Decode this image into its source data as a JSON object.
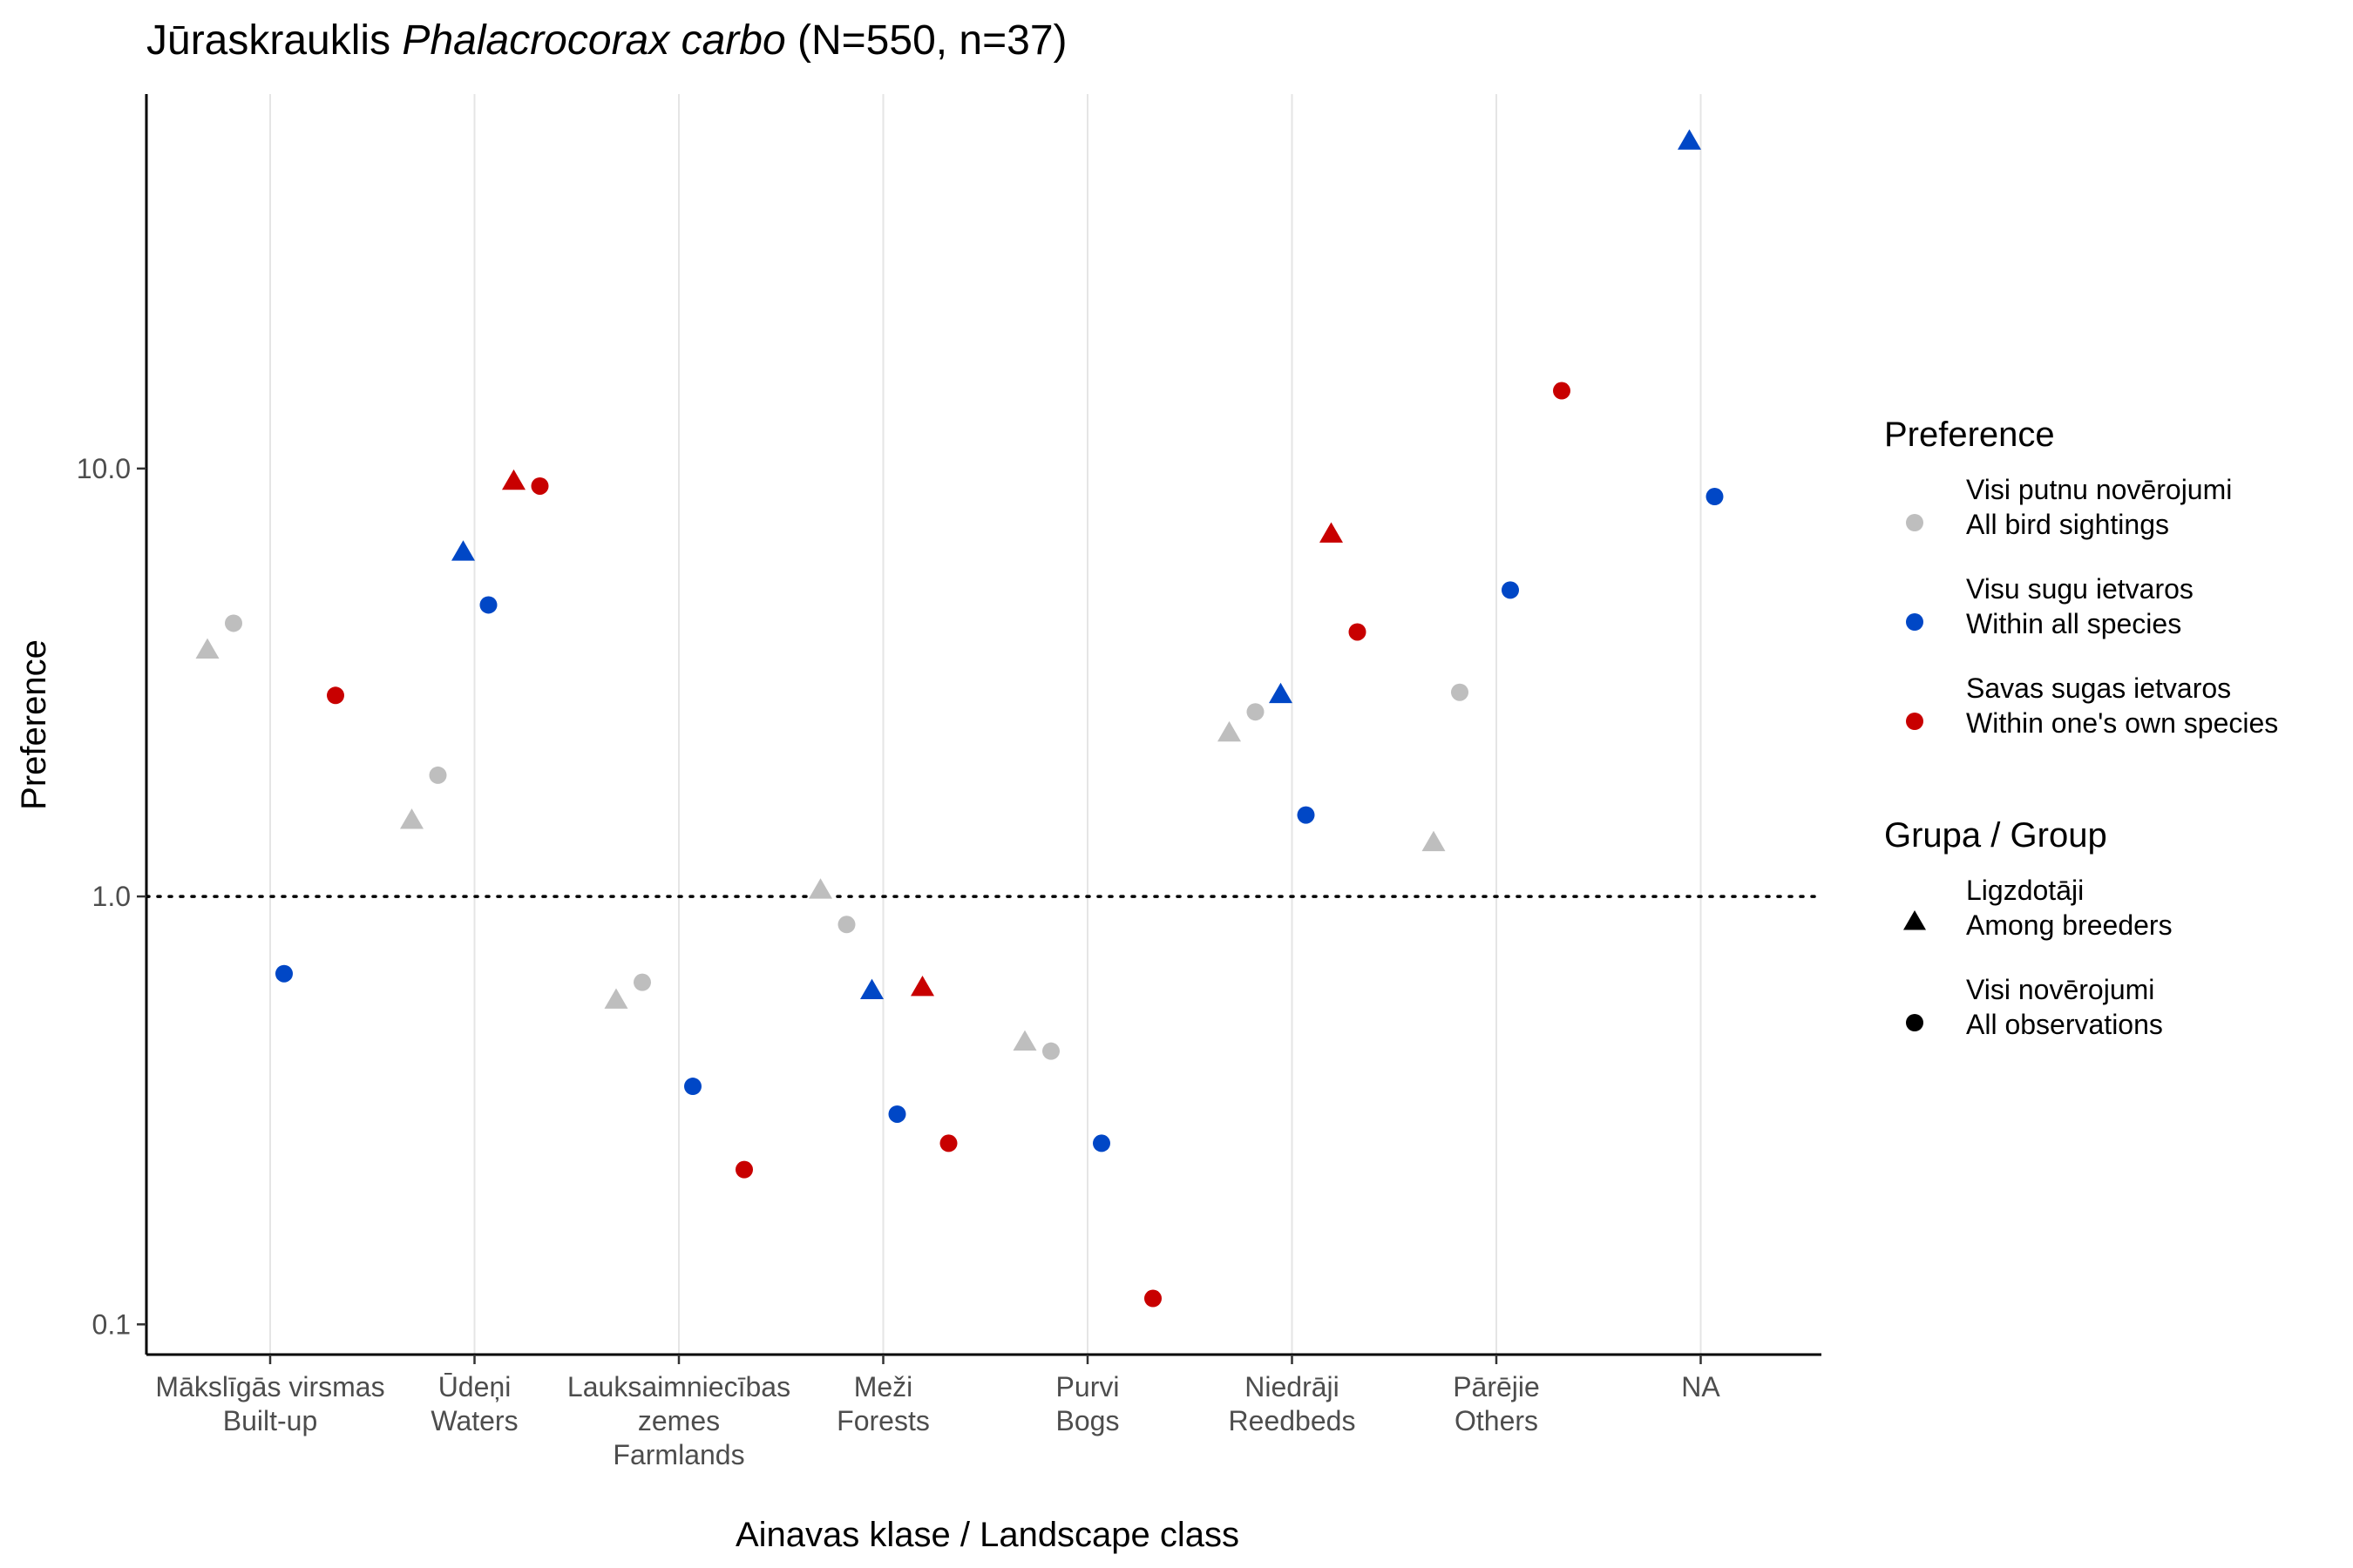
{
  "chart_data": {
    "type": "scatter",
    "title": {
      "prefix": "Jūraskrauklis ",
      "species_italic": "Phalacrocorax carbo",
      "suffix": " (N=550, n=37)"
    },
    "xlabel": "Ainavas klase / Landscape class",
    "ylabel": "Preference",
    "y_scale": "log10",
    "ylim": [
      0.085,
      75
    ],
    "y_ticks": [
      {
        "value": 0.1,
        "label": "0.1"
      },
      {
        "value": 1.0,
        "label": "1.0"
      },
      {
        "value": 10.0,
        "label": "10.0"
      }
    ],
    "reference_line": {
      "y": 1.0,
      "style": "dotted"
    },
    "grid": "vertical major only",
    "categories": [
      {
        "lines": [
          "Mākslīgās virsmas",
          "Built-up"
        ]
      },
      {
        "lines": [
          "Ūdeņi",
          "Waters"
        ]
      },
      {
        "lines": [
          "Lauksaimniecības",
          "zemes",
          "Farmlands"
        ]
      },
      {
        "lines": [
          "Meži",
          "Forests"
        ]
      },
      {
        "lines": [
          "Purvi",
          "Bogs"
        ]
      },
      {
        "lines": [
          "Niedrāji",
          "Reedbeds"
        ]
      },
      {
        "lines": [
          "Pārējie",
          "Others"
        ]
      },
      {
        "lines": [
          "NA"
        ]
      }
    ],
    "preference_legend": {
      "title": "Preference",
      "items": [
        {
          "key": "all_sightings",
          "color": "#bebebe",
          "lines": [
            "Visi putnu novērojumi",
            "All bird sightings"
          ]
        },
        {
          "key": "within_all",
          "color": "#0047c6",
          "lines": [
            "Visu sugu ietvaros",
            "Within all species"
          ]
        },
        {
          "key": "within_own",
          "color": "#c80000",
          "lines": [
            "Savas sugas ietvaros",
            "Within one's own species"
          ]
        }
      ]
    },
    "group_legend": {
      "title": "Grupa / Group",
      "items": [
        {
          "key": "breeders",
          "shape": "triangle",
          "lines": [
            "Ligzdotāji",
            "Among breeders"
          ]
        },
        {
          "key": "all_obs",
          "shape": "circle",
          "lines": [
            "Visi novērojumi",
            "All observations"
          ]
        }
      ]
    },
    "legend_position": "right",
    "points": [
      {
        "category": 0,
        "pref": "all_sightings",
        "group": "breeders",
        "y": 3.75
      },
      {
        "category": 0,
        "pref": "all_sightings",
        "group": "all_obs",
        "y": 4.35
      },
      {
        "category": 0,
        "pref": "within_all",
        "group": "all_obs",
        "y": 0.66
      },
      {
        "category": 0,
        "pref": "within_own",
        "group": "all_obs",
        "y": 2.95
      },
      {
        "category": 1,
        "pref": "all_sightings",
        "group": "breeders",
        "y": 1.5
      },
      {
        "category": 1,
        "pref": "all_sightings",
        "group": "all_obs",
        "y": 1.92
      },
      {
        "category": 1,
        "pref": "within_all",
        "group": "breeders",
        "y": 6.35
      },
      {
        "category": 1,
        "pref": "within_all",
        "group": "all_obs",
        "y": 4.8
      },
      {
        "category": 1,
        "pref": "within_own",
        "group": "breeders",
        "y": 9.3
      },
      {
        "category": 1,
        "pref": "within_own",
        "group": "all_obs",
        "y": 9.1
      },
      {
        "category": 2,
        "pref": "all_sightings",
        "group": "breeders",
        "y": 0.57
      },
      {
        "category": 2,
        "pref": "all_sightings",
        "group": "all_obs",
        "y": 0.63
      },
      {
        "category": 2,
        "pref": "within_all",
        "group": "all_obs",
        "y": 0.36
      },
      {
        "category": 2,
        "pref": "within_own",
        "group": "all_obs",
        "y": 0.23
      },
      {
        "category": 3,
        "pref": "all_sightings",
        "group": "breeders",
        "y": 1.03
      },
      {
        "category": 3,
        "pref": "all_sightings",
        "group": "all_obs",
        "y": 0.86
      },
      {
        "category": 3,
        "pref": "within_all",
        "group": "breeders",
        "y": 0.6
      },
      {
        "category": 3,
        "pref": "within_all",
        "group": "all_obs",
        "y": 0.31
      },
      {
        "category": 3,
        "pref": "within_own",
        "group": "breeders",
        "y": 0.61
      },
      {
        "category": 3,
        "pref": "within_own",
        "group": "all_obs",
        "y": 0.265
      },
      {
        "category": 4,
        "pref": "all_sightings",
        "group": "breeders",
        "y": 0.455
      },
      {
        "category": 4,
        "pref": "all_sightings",
        "group": "all_obs",
        "y": 0.435
      },
      {
        "category": 4,
        "pref": "within_all",
        "group": "all_obs",
        "y": 0.265
      },
      {
        "category": 4,
        "pref": "within_own",
        "group": "all_obs",
        "y": 0.115
      },
      {
        "category": 5,
        "pref": "all_sightings",
        "group": "breeders",
        "y": 2.4
      },
      {
        "category": 5,
        "pref": "all_sightings",
        "group": "all_obs",
        "y": 2.7
      },
      {
        "category": 5,
        "pref": "within_all",
        "group": "breeders",
        "y": 2.95
      },
      {
        "category": 5,
        "pref": "within_all",
        "group": "all_obs",
        "y": 1.55
      },
      {
        "category": 5,
        "pref": "within_own",
        "group": "breeders",
        "y": 7.0
      },
      {
        "category": 5,
        "pref": "within_own",
        "group": "all_obs",
        "y": 4.15
      },
      {
        "category": 6,
        "pref": "all_sightings",
        "group": "breeders",
        "y": 1.33
      },
      {
        "category": 6,
        "pref": "all_sightings",
        "group": "all_obs",
        "y": 3.0
      },
      {
        "category": 6,
        "pref": "within_all",
        "group": "all_obs",
        "y": 5.2
      },
      {
        "category": 6,
        "pref": "within_own",
        "group": "all_obs",
        "y": 15.2
      },
      {
        "category": 7,
        "pref": "within_all",
        "group": "breeders",
        "y": 58.0
      },
      {
        "category": 7,
        "pref": "within_all",
        "group": "all_obs",
        "y": 8.6
      }
    ]
  }
}
